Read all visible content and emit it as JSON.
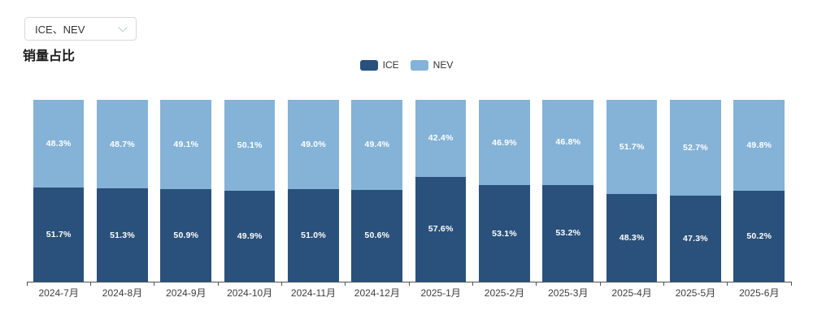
{
  "title": "销量占比",
  "controls": {
    "series_select": {
      "value": "ICE、NEV",
      "icon": "chevron-down-icon"
    }
  },
  "chart_data": {
    "type": "bar",
    "stacked": true,
    "unit": "%",
    "ylim": [
      0,
      100
    ],
    "grid": false,
    "legend_position": "top-center",
    "value_labels": "inside-center",
    "categories": [
      "2024-7月",
      "2024-8月",
      "2024-9月",
      "2024-10月",
      "2024-11月",
      "2024-12月",
      "2025-1月",
      "2025-2月",
      "2025-3月",
      "2025-4月",
      "2025-5月",
      "2025-6月"
    ],
    "series": [
      {
        "name": "ICE",
        "color": "#29517b",
        "stack_order": "bottom",
        "values": [
          51.7,
          51.3,
          50.9,
          49.9,
          51.0,
          50.6,
          57.6,
          53.1,
          53.2,
          48.3,
          47.3,
          50.2
        ]
      },
      {
        "name": "NEV",
        "color": "#84b3d7",
        "stack_order": "top",
        "values": [
          48.3,
          48.7,
          49.1,
          50.1,
          49.0,
          49.4,
          42.4,
          46.9,
          46.8,
          51.7,
          52.7,
          49.8
        ]
      }
    ]
  }
}
